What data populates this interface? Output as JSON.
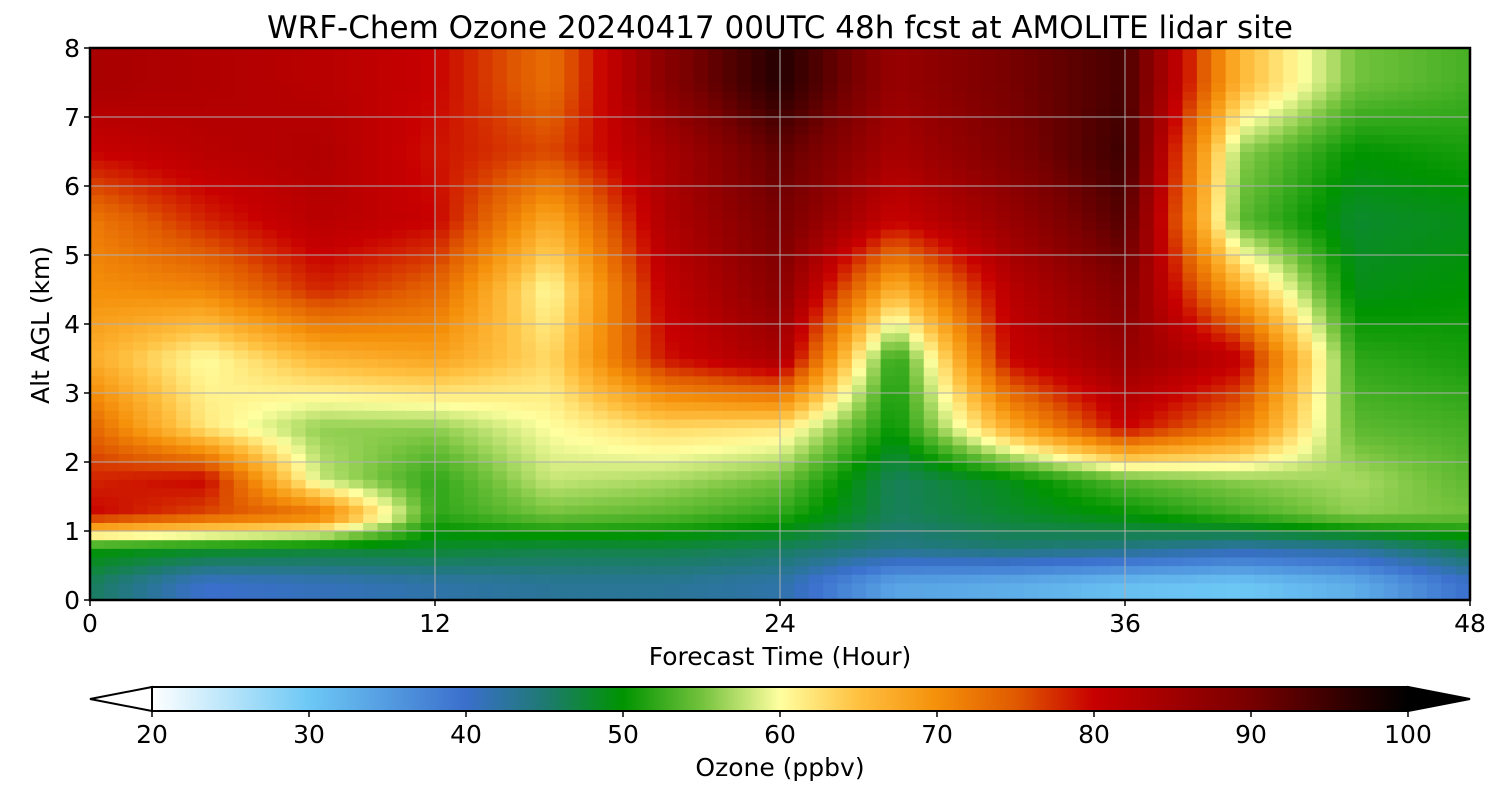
{
  "chart_data": {
    "type": "heatmap",
    "title": "WRF-Chem Ozone  20240417 00UTC 48h fcst at AMOLITE lidar site",
    "xlabel": "Forecast Time (Hour)",
    "ylabel": "Alt AGL (km)",
    "xlim": [
      0,
      48
    ],
    "ylim": [
      0,
      8
    ],
    "x_ticks": [
      "0",
      "12",
      "24",
      "36",
      "48"
    ],
    "y_ticks": [
      "0",
      "1",
      "2",
      "3",
      "4",
      "5",
      "6",
      "7",
      "8"
    ],
    "grid": true,
    "x_hours": [
      0,
      4,
      8,
      12,
      16,
      20,
      24,
      28,
      32,
      36,
      40,
      44,
      48
    ],
    "y_km": [
      0.25,
      0.75,
      1.25,
      1.75,
      2.5,
      3.5,
      4.5,
      5.5,
      6.5,
      7.5
    ],
    "z_ppbv": [
      [
        46,
        40,
        41,
        42,
        43,
        43,
        42,
        34,
        33,
        31,
        30,
        33,
        40
      ],
      [
        50,
        49,
        48,
        48,
        47,
        47,
        46,
        44,
        45,
        44,
        42,
        43,
        47
      ],
      [
        80,
        76,
        73,
        52,
        55,
        54,
        52,
        46,
        48,
        50,
        53,
        56,
        55
      ],
      [
        78,
        80,
        58,
        52,
        58,
        57,
        55,
        46,
        49,
        54,
        56,
        57,
        54
      ],
      [
        74,
        62,
        56,
        56,
        60,
        63,
        62,
        50,
        67,
        80,
        72,
        54,
        53
      ],
      [
        67,
        60,
        66,
        68,
        63,
        79,
        84,
        51,
        80,
        86,
        81,
        52,
        51
      ],
      [
        70,
        71,
        78,
        74,
        60,
        81,
        88,
        66,
        82,
        89,
        67,
        49,
        50
      ],
      [
        72,
        78,
        82,
        80,
        67,
        83,
        90,
        80,
        86,
        93,
        54,
        48,
        49
      ],
      [
        80,
        82,
        83,
        79,
        76,
        84,
        92,
        84,
        89,
        95,
        56,
        50,
        51
      ],
      [
        84,
        83,
        82,
        80,
        73,
        88,
        97,
        86,
        90,
        94,
        66,
        55,
        53
      ]
    ],
    "colorbar": {
      "label": "Ozone  (ppbv)",
      "min": 20,
      "max": 100,
      "ticks": [
        "20",
        "30",
        "40",
        "50",
        "60",
        "70",
        "80",
        "90",
        "100"
      ],
      "extend": "both",
      "stops": [
        {
          "v": 20,
          "c": "#ffffff"
        },
        {
          "v": 30,
          "c": "#6dc8f5"
        },
        {
          "v": 40,
          "c": "#3a6fcc"
        },
        {
          "v": 45,
          "c": "#1e7a72"
        },
        {
          "v": 50,
          "c": "#009400"
        },
        {
          "v": 55,
          "c": "#73c23c"
        },
        {
          "v": 60,
          "c": "#ffffa0"
        },
        {
          "v": 65,
          "c": "#ffc040"
        },
        {
          "v": 70,
          "c": "#f5900a"
        },
        {
          "v": 75,
          "c": "#e05a00"
        },
        {
          "v": 80,
          "c": "#c80000"
        },
        {
          "v": 90,
          "c": "#780000"
        },
        {
          "v": 100,
          "c": "#000000"
        }
      ]
    }
  }
}
